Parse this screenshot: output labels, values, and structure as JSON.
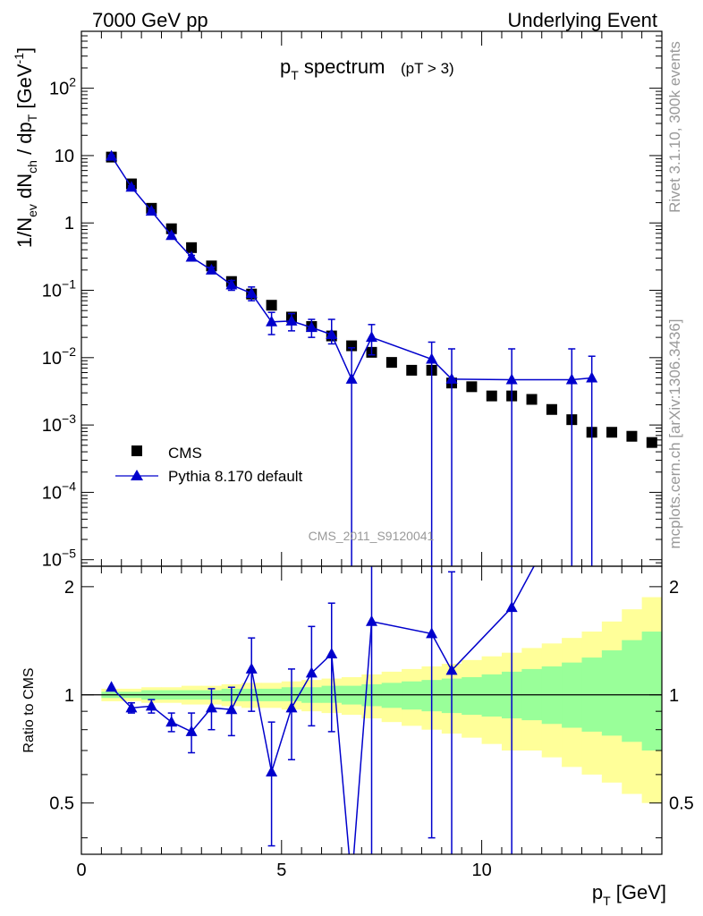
{
  "header": {
    "left": "7000 GeV pp",
    "right": "Underlying Event"
  },
  "side_labels": {
    "rivet": "Rivet 3.1.10,  300k events",
    "mcplots": "mcplots.cern.ch [arXiv:1306.3436]"
  },
  "chart_data": [
    {
      "type": "scatter",
      "panel": "main",
      "title": "pT spectrum",
      "title_main": "p",
      "title_sub": "T",
      "title_rest": " spectrum",
      "title_cut": "(pT >  3)",
      "analysis_label": "CMS_2011_S9120041",
      "yscale": "log",
      "xlim": [
        0,
        14.5
      ],
      "ylim": [
        8e-06,
        700
      ],
      "ylabel": "1/Nev dNch / dpT [GeV-1]",
      "y_ticks": [
        {
          "value": 100,
          "base": "10",
          "exp": "2"
        },
        {
          "value": 10,
          "base": "10",
          "exp": ""
        },
        {
          "value": 1,
          "base": "1",
          "exp": ""
        },
        {
          "value": 0.1,
          "base": "10",
          "exp": "−1"
        },
        {
          "value": 0.01,
          "base": "10",
          "exp": "−2"
        },
        {
          "value": 0.001,
          "base": "10",
          "exp": "−3"
        },
        {
          "value": 0.0001,
          "base": "10",
          "exp": "−4"
        },
        {
          "value": 1e-05,
          "base": "10",
          "exp": "−5"
        }
      ],
      "legend": [
        {
          "name": "CMS",
          "marker": "square",
          "color": "#000000"
        },
        {
          "name": "Pythia 8.170 default",
          "marker": "triangle",
          "color": "#0000cc"
        }
      ],
      "series": [
        {
          "name": "CMS",
          "x": [
            0.75,
            1.25,
            1.75,
            2.25,
            2.75,
            3.25,
            3.75,
            4.25,
            4.75,
            5.25,
            5.75,
            6.25,
            6.75,
            7.25,
            7.75,
            8.25,
            8.75,
            9.25,
            9.75,
            10.25,
            10.75,
            11.25,
            11.75,
            12.25,
            12.75,
            13.25,
            13.75,
            14.25
          ],
          "values": [
            9.5,
            3.8,
            1.65,
            0.82,
            0.43,
            0.23,
            0.135,
            0.088,
            0.06,
            0.04,
            0.029,
            0.021,
            0.015,
            0.012,
            0.0085,
            0.0065,
            0.0065,
            0.0042,
            0.0037,
            0.0027,
            0.0027,
            0.0024,
            0.0017,
            0.0012,
            0.00078,
            0.00078,
            0.00068,
            0.00055
          ]
        },
        {
          "name": "Pythia 8.170 default",
          "x": [
            0.75,
            1.25,
            1.75,
            2.25,
            2.75,
            3.25,
            3.75,
            4.25,
            4.75,
            5.25,
            5.75,
            6.25,
            6.75,
            7.25,
            8.75,
            9.25,
            10.75,
            12.25,
            12.75
          ],
          "values": [
            9.8,
            3.4,
            1.5,
            0.65,
            0.31,
            0.2,
            0.12,
            0.09,
            0.034,
            0.035,
            0.028,
            0.022,
            0.0048,
            0.02,
            0.0095,
            0.0048,
            0.0047,
            0.0047,
            0.005
          ],
          "err_lo": [
            9.5,
            3.25,
            1.44,
            0.61,
            0.29,
            0.18,
            0.1,
            0.07,
            0.022,
            0.025,
            0.02,
            0.016,
            null,
            0.011,
            null,
            null,
            null,
            null,
            null
          ],
          "err_hi": [
            10.1,
            3.55,
            1.56,
            0.69,
            0.33,
            0.22,
            0.14,
            0.112,
            0.047,
            0.045,
            0.037,
            0.037,
            0.014,
            0.031,
            0.017,
            0.0135,
            0.0135,
            0.0135,
            0.0105
          ]
        }
      ]
    },
    {
      "type": "line",
      "panel": "ratio",
      "ylabel": "Ratio to CMS",
      "xlabel": "pT [GeV]",
      "xlim": [
        0,
        14.5
      ],
      "ylim": [
        0.36,
        2.28
      ],
      "yscale": "log",
      "x_ticks": [
        0,
        5,
        10
      ],
      "y_ticks": [
        0.5,
        1,
        2
      ],
      "bins": [
        0.5,
        1,
        1.5,
        2,
        2.5,
        3,
        3.5,
        4,
        4.5,
        5,
        5.5,
        6,
        6.5,
        7,
        7.5,
        8,
        8.5,
        9,
        9.5,
        10,
        10.5,
        11,
        11.5,
        12,
        12.5,
        13,
        13.5,
        14,
        14.5
      ],
      "band_yellow_lo": [
        0.96,
        0.96,
        0.95,
        0.95,
        0.94,
        0.94,
        0.93,
        0.92,
        0.92,
        0.91,
        0.9,
        0.89,
        0.88,
        0.86,
        0.84,
        0.82,
        0.8,
        0.78,
        0.76,
        0.73,
        0.7,
        0.7,
        0.67,
        0.63,
        0.6,
        0.57,
        0.53,
        0.5
      ],
      "band_yellow_hi": [
        1.04,
        1.04,
        1.05,
        1.05,
        1.06,
        1.06,
        1.07,
        1.08,
        1.08,
        1.09,
        1.1,
        1.11,
        1.12,
        1.14,
        1.16,
        1.18,
        1.2,
        1.22,
        1.25,
        1.28,
        1.31,
        1.35,
        1.39,
        1.44,
        1.5,
        1.6,
        1.73,
        1.87
      ],
      "band_green_lo": [
        0.98,
        0.98,
        0.97,
        0.97,
        0.97,
        0.97,
        0.96,
        0.96,
        0.96,
        0.96,
        0.95,
        0.95,
        0.94,
        0.93,
        0.92,
        0.91,
        0.9,
        0.89,
        0.88,
        0.87,
        0.86,
        0.85,
        0.83,
        0.81,
        0.79,
        0.77,
        0.74,
        0.7
      ],
      "band_green_hi": [
        1.02,
        1.02,
        1.03,
        1.03,
        1.03,
        1.03,
        1.04,
        1.04,
        1.04,
        1.05,
        1.05,
        1.06,
        1.06,
        1.07,
        1.08,
        1.09,
        1.1,
        1.11,
        1.12,
        1.14,
        1.16,
        1.18,
        1.2,
        1.23,
        1.27,
        1.33,
        1.42,
        1.5
      ],
      "series": [
        {
          "name": "Pythia 8.170 default / CMS",
          "x": [
            0.75,
            1.25,
            1.75,
            2.25,
            2.75,
            3.25,
            3.75,
            4.25,
            4.75,
            5.25,
            5.75,
            6.25,
            6.75,
            7.25,
            8.75,
            9.25,
            10.75,
            11.5
          ],
          "values": [
            1.05,
            0.92,
            0.93,
            0.84,
            0.79,
            0.92,
            0.91,
            1.18,
            0.61,
            0.92,
            1.15,
            1.3,
            0.3,
            1.6,
            1.48,
            1.17,
            1.75,
            2.5
          ],
          "err_lo": [
            null,
            0.89,
            0.89,
            0.79,
            0.69,
            0.8,
            0.77,
            0.9,
            0.38,
            0.66,
            0.82,
            0.79,
            null,
            0.3,
            0.4,
            0.3,
            0.3,
            null
          ],
          "err_hi": [
            null,
            0.95,
            0.97,
            0.89,
            0.89,
            1.04,
            1.05,
            1.44,
            0.84,
            1.18,
            1.55,
            1.8,
            null,
            2.28,
            2.28,
            2.2,
            2.28,
            null
          ]
        }
      ]
    }
  ]
}
